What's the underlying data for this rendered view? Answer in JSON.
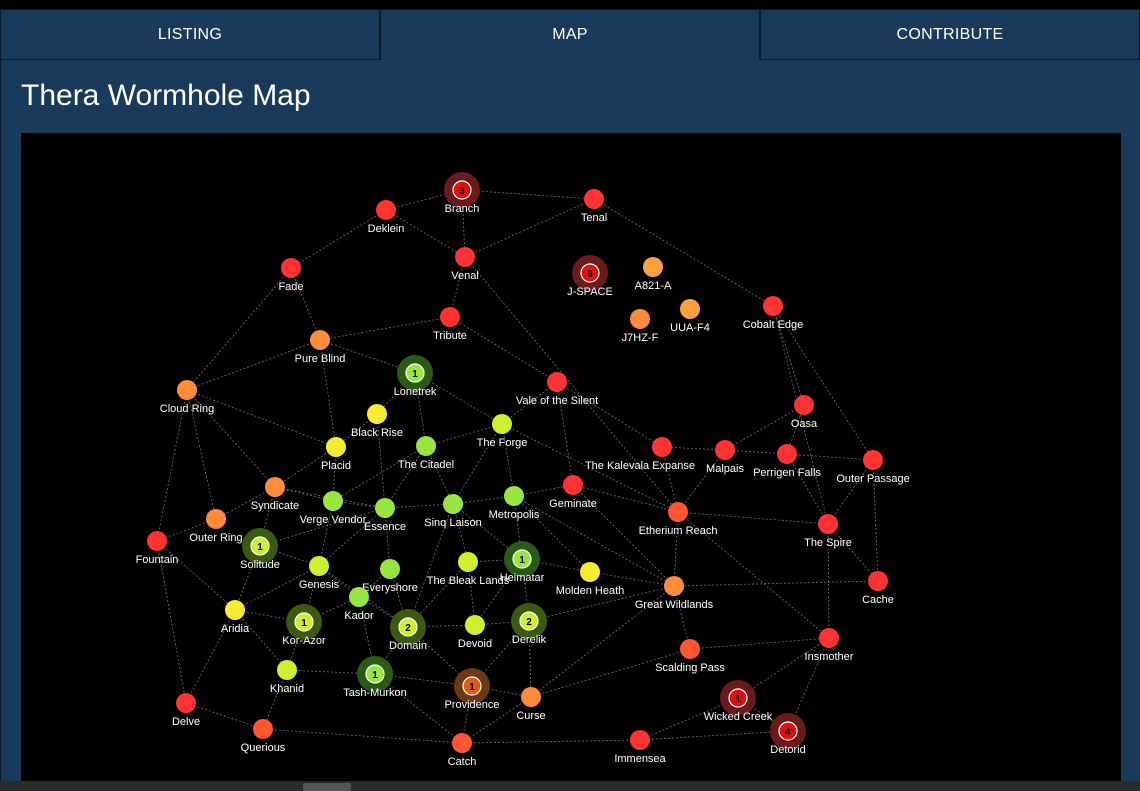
{
  "tabs": [
    {
      "label": "LISTING"
    },
    {
      "label": "MAP"
    },
    {
      "label": "CONTRIBUTE"
    }
  ],
  "page": {
    "title": "Thera Wormhole Map"
  },
  "colors": {
    "red": "#ff3333",
    "redorange": "#ff5533",
    "orange": "#ff8c3a",
    "amber": "#ffa040",
    "yellow": "#f8ec30",
    "lime": "#ccf030",
    "green": "#99e640"
  },
  "map": {
    "nodes": [
      {
        "id": "branch",
        "name": "Branch",
        "color": "red",
        "badge": "3"
      },
      {
        "id": "tenal",
        "name": "Tenal",
        "color": "red"
      },
      {
        "id": "deklein",
        "name": "Deklein",
        "color": "red"
      },
      {
        "id": "venal",
        "name": "Venal",
        "color": "red"
      },
      {
        "id": "fade",
        "name": "Fade",
        "color": "red"
      },
      {
        "id": "jspace",
        "name": "J-SPACE",
        "color": "red",
        "badge": "6"
      },
      {
        "id": "a821",
        "name": "A821-A",
        "color": "amber"
      },
      {
        "id": "uuaf4",
        "name": "UUA-F4",
        "color": "amber"
      },
      {
        "id": "j7hzf",
        "name": "J7HZ-F",
        "color": "orange"
      },
      {
        "id": "cobalt",
        "name": "Cobalt Edge",
        "color": "red"
      },
      {
        "id": "tribute",
        "name": "Tribute",
        "color": "red"
      },
      {
        "id": "pureblind",
        "name": "Pure Blind",
        "color": "orange"
      },
      {
        "id": "lonetrek",
        "name": "Lonetrek",
        "color": "green",
        "badge": "1"
      },
      {
        "id": "cloudring",
        "name": "Cloud Ring",
        "color": "orange"
      },
      {
        "id": "vale",
        "name": "Vale of the Silent",
        "color": "red"
      },
      {
        "id": "oasa",
        "name": "Oasa",
        "color": "red"
      },
      {
        "id": "blackrise",
        "name": "Black Rise",
        "color": "yellow"
      },
      {
        "id": "theforge",
        "name": "The Forge",
        "color": "lime"
      },
      {
        "id": "placid",
        "name": "Placid",
        "color": "yellow"
      },
      {
        "id": "citadel",
        "name": "The Citadel",
        "color": "green"
      },
      {
        "id": "kalevala",
        "name": "The Kalevala Expanse",
        "color": "red"
      },
      {
        "id": "malpais",
        "name": "Malpais",
        "color": "red"
      },
      {
        "id": "perrigen",
        "name": "Perrigen Falls",
        "color": "red"
      },
      {
        "id": "outerpassage",
        "name": "Outer Passage",
        "color": "red"
      },
      {
        "id": "syndicate",
        "name": "Syndicate",
        "color": "orange"
      },
      {
        "id": "vergevendor",
        "name": "Verge Vendor",
        "color": "green"
      },
      {
        "id": "essence",
        "name": "Essence",
        "color": "green"
      },
      {
        "id": "sinqlaison",
        "name": "Sinq Laison",
        "color": "green"
      },
      {
        "id": "metropolis",
        "name": "Metropolis",
        "color": "green"
      },
      {
        "id": "geminate",
        "name": "Geminate",
        "color": "red"
      },
      {
        "id": "etherium",
        "name": "Etherium Reach",
        "color": "redorange"
      },
      {
        "id": "thespire",
        "name": "The Spire",
        "color": "red"
      },
      {
        "id": "outerring",
        "name": "Outer Ring",
        "color": "orange"
      },
      {
        "id": "solitude",
        "name": "Solitude",
        "color": "lime",
        "badge": "1"
      },
      {
        "id": "fountain",
        "name": "Fountain",
        "color": "red"
      },
      {
        "id": "genesis",
        "name": "Genesis",
        "color": "lime"
      },
      {
        "id": "everyshore",
        "name": "Everyshore",
        "color": "green"
      },
      {
        "id": "bleaklands",
        "name": "The Bleak Lands",
        "color": "lime"
      },
      {
        "id": "heimatar",
        "name": "Heimatar",
        "color": "green",
        "badge": "1"
      },
      {
        "id": "moldenheath",
        "name": "Molden Heath",
        "color": "yellow"
      },
      {
        "id": "greatwild",
        "name": "Great Wildlands",
        "color": "orange"
      },
      {
        "id": "cache",
        "name": "Cache",
        "color": "red"
      },
      {
        "id": "aridia",
        "name": "Aridia",
        "color": "yellow"
      },
      {
        "id": "korazor",
        "name": "Kor-Azor",
        "color": "lime",
        "badge": "1"
      },
      {
        "id": "kador",
        "name": "Kador",
        "color": "green"
      },
      {
        "id": "domain",
        "name": "Domain",
        "color": "lime",
        "badge": "2"
      },
      {
        "id": "devoid",
        "name": "Devoid",
        "color": "lime"
      },
      {
        "id": "derelik",
        "name": "Derelik",
        "color": "lime",
        "badge": "2"
      },
      {
        "id": "scalding",
        "name": "Scalding Pass",
        "color": "redorange"
      },
      {
        "id": "insmother",
        "name": "Insmother",
        "color": "red"
      },
      {
        "id": "khanid",
        "name": "Khanid",
        "color": "lime"
      },
      {
        "id": "tashmurkon",
        "name": "Tash-Murkon",
        "color": "green",
        "badge": "1"
      },
      {
        "id": "providence",
        "name": "Providence",
        "color": "orange",
        "badge": "1"
      },
      {
        "id": "curse",
        "name": "Curse",
        "color": "orange"
      },
      {
        "id": "wickedcreek",
        "name": "Wicked Creek",
        "color": "red",
        "badge": "1"
      },
      {
        "id": "detorid",
        "name": "Detorid",
        "color": "red",
        "badge": "4"
      },
      {
        "id": "delve",
        "name": "Delve",
        "color": "red"
      },
      {
        "id": "querious",
        "name": "Querious",
        "color": "redorange"
      },
      {
        "id": "catch",
        "name": "Catch",
        "color": "redorange"
      },
      {
        "id": "immensea",
        "name": "Immensea",
        "color": "red"
      }
    ],
    "edges": [
      [
        "deklein",
        "branch"
      ],
      [
        "branch",
        "tenal"
      ],
      [
        "branch",
        "venal"
      ],
      [
        "tenal",
        "venal"
      ],
      [
        "tenal",
        "cobalt"
      ],
      [
        "deklein",
        "venal"
      ],
      [
        "deklein",
        "fade"
      ],
      [
        "fade",
        "pureblind"
      ],
      [
        "fade",
        "cloudring"
      ],
      [
        "venal",
        "tribute"
      ],
      [
        "venal",
        "etherium"
      ],
      [
        "tribute",
        "pureblind"
      ],
      [
        "tribute",
        "vale"
      ],
      [
        "pureblind",
        "lonetrek"
      ],
      [
        "pureblind",
        "cloudring"
      ],
      [
        "pureblind",
        "placid"
      ],
      [
        "lonetrek",
        "citadel"
      ],
      [
        "lonetrek",
        "theforge"
      ],
      [
        "lonetrek",
        "blackrise"
      ],
      [
        "cloudring",
        "syndicate"
      ],
      [
        "cloudring",
        "outerring"
      ],
      [
        "cloudring",
        "fountain"
      ],
      [
        "cloudring",
        "placid"
      ],
      [
        "vale",
        "theforge"
      ],
      [
        "vale",
        "geminate"
      ],
      [
        "vale",
        "kalevala"
      ],
      [
        "cobalt",
        "oasa"
      ],
      [
        "cobalt",
        "outerpassage"
      ],
      [
        "cobalt",
        "thespire"
      ],
      [
        "oasa",
        "malpais"
      ],
      [
        "oasa",
        "perrigen"
      ],
      [
        "malpais",
        "kalevala"
      ],
      [
        "malpais",
        "etherium"
      ],
      [
        "malpais",
        "perrigen"
      ],
      [
        "perrigen",
        "outerpassage"
      ],
      [
        "perrigen",
        "thespire"
      ],
      [
        "outerpassage",
        "thespire"
      ],
      [
        "outerpassage",
        "cache"
      ],
      [
        "kalevala",
        "etherium"
      ],
      [
        "etherium",
        "thespire"
      ],
      [
        "etherium",
        "greatwild"
      ],
      [
        "etherium",
        "geminate"
      ],
      [
        "etherium",
        "insmother"
      ],
      [
        "thespire",
        "cache"
      ],
      [
        "thespire",
        "insmother"
      ],
      [
        "cache",
        "greatwild"
      ],
      [
        "blackrise",
        "placid"
      ],
      [
        "blackrise",
        "essence"
      ],
      [
        "theforge",
        "citadel"
      ],
      [
        "theforge",
        "metropolis"
      ],
      [
        "theforge",
        "sinqlaison"
      ],
      [
        "theforge",
        "etherium"
      ],
      [
        "placid",
        "syndicate"
      ],
      [
        "placid",
        "vergevendor"
      ],
      [
        "citadel",
        "essence"
      ],
      [
        "citadel",
        "sinqlaison"
      ],
      [
        "citadel",
        "vergevendor"
      ],
      [
        "syndicate",
        "outerring"
      ],
      [
        "syndicate",
        "solitude"
      ],
      [
        "syndicate",
        "vergevendor"
      ],
      [
        "syndicate",
        "essence"
      ],
      [
        "vergevendor",
        "essence"
      ],
      [
        "vergevendor",
        "genesis"
      ],
      [
        "essence",
        "sinqlaison"
      ],
      [
        "essence",
        "everyshore"
      ],
      [
        "essence",
        "genesis"
      ],
      [
        "essence",
        "solitude"
      ],
      [
        "sinqlaison",
        "metropolis"
      ],
      [
        "sinqlaison",
        "bleaklands"
      ],
      [
        "sinqlaison",
        "domain"
      ],
      [
        "sinqlaison",
        "heimatar"
      ],
      [
        "metropolis",
        "geminate"
      ],
      [
        "metropolis",
        "heimatar"
      ],
      [
        "metropolis",
        "moldenheath"
      ],
      [
        "metropolis",
        "greatwild"
      ],
      [
        "geminate",
        "greatwild"
      ],
      [
        "outerring",
        "fountain"
      ],
      [
        "solitude",
        "genesis"
      ],
      [
        "solitude",
        "aridia"
      ],
      [
        "fountain",
        "delve"
      ],
      [
        "fountain",
        "aridia"
      ],
      [
        "genesis",
        "kador"
      ],
      [
        "genesis",
        "korazor"
      ],
      [
        "genesis",
        "aridia"
      ],
      [
        "genesis",
        "domain"
      ],
      [
        "everyshore",
        "kador"
      ],
      [
        "everyshore",
        "domain"
      ],
      [
        "bleaklands",
        "heimatar"
      ],
      [
        "bleaklands",
        "domain"
      ],
      [
        "bleaklands",
        "devoid"
      ],
      [
        "heimatar",
        "moldenheath"
      ],
      [
        "heimatar",
        "derelik"
      ],
      [
        "heimatar",
        "devoid"
      ],
      [
        "moldenheath",
        "greatwild"
      ],
      [
        "greatwild",
        "derelik"
      ],
      [
        "greatwild",
        "curse"
      ],
      [
        "greatwild",
        "scalding"
      ],
      [
        "aridia",
        "korazor"
      ],
      [
        "aridia",
        "delve"
      ],
      [
        "aridia",
        "khanid"
      ],
      [
        "korazor",
        "kador"
      ],
      [
        "korazor",
        "khanid"
      ],
      [
        "kador",
        "domain"
      ],
      [
        "kador",
        "tashmurkon"
      ],
      [
        "domain",
        "devoid"
      ],
      [
        "domain",
        "providence"
      ],
      [
        "domain",
        "tashmurkon"
      ],
      [
        "devoid",
        "derelik"
      ],
      [
        "derelik",
        "providence"
      ],
      [
        "derelik",
        "curse"
      ],
      [
        "scalding",
        "insmother"
      ],
      [
        "scalding",
        "curse"
      ],
      [
        "insmother",
        "wickedcreek"
      ],
      [
        "insmother",
        "detorid"
      ],
      [
        "khanid",
        "tashmurkon"
      ],
      [
        "khanid",
        "querious"
      ],
      [
        "tashmurkon",
        "providence"
      ],
      [
        "providence",
        "catch"
      ],
      [
        "providence",
        "curse"
      ],
      [
        "curse",
        "catch"
      ],
      [
        "wickedcreek",
        "detorid"
      ],
      [
        "wickedcreek",
        "immensea"
      ],
      [
        "delve",
        "querious"
      ],
      [
        "querious",
        "catch"
      ],
      [
        "catch",
        "immensea"
      ],
      [
        "immensea",
        "detorid"
      ],
      [
        "catch",
        "tashmurkon"
      ]
    ]
  }
}
